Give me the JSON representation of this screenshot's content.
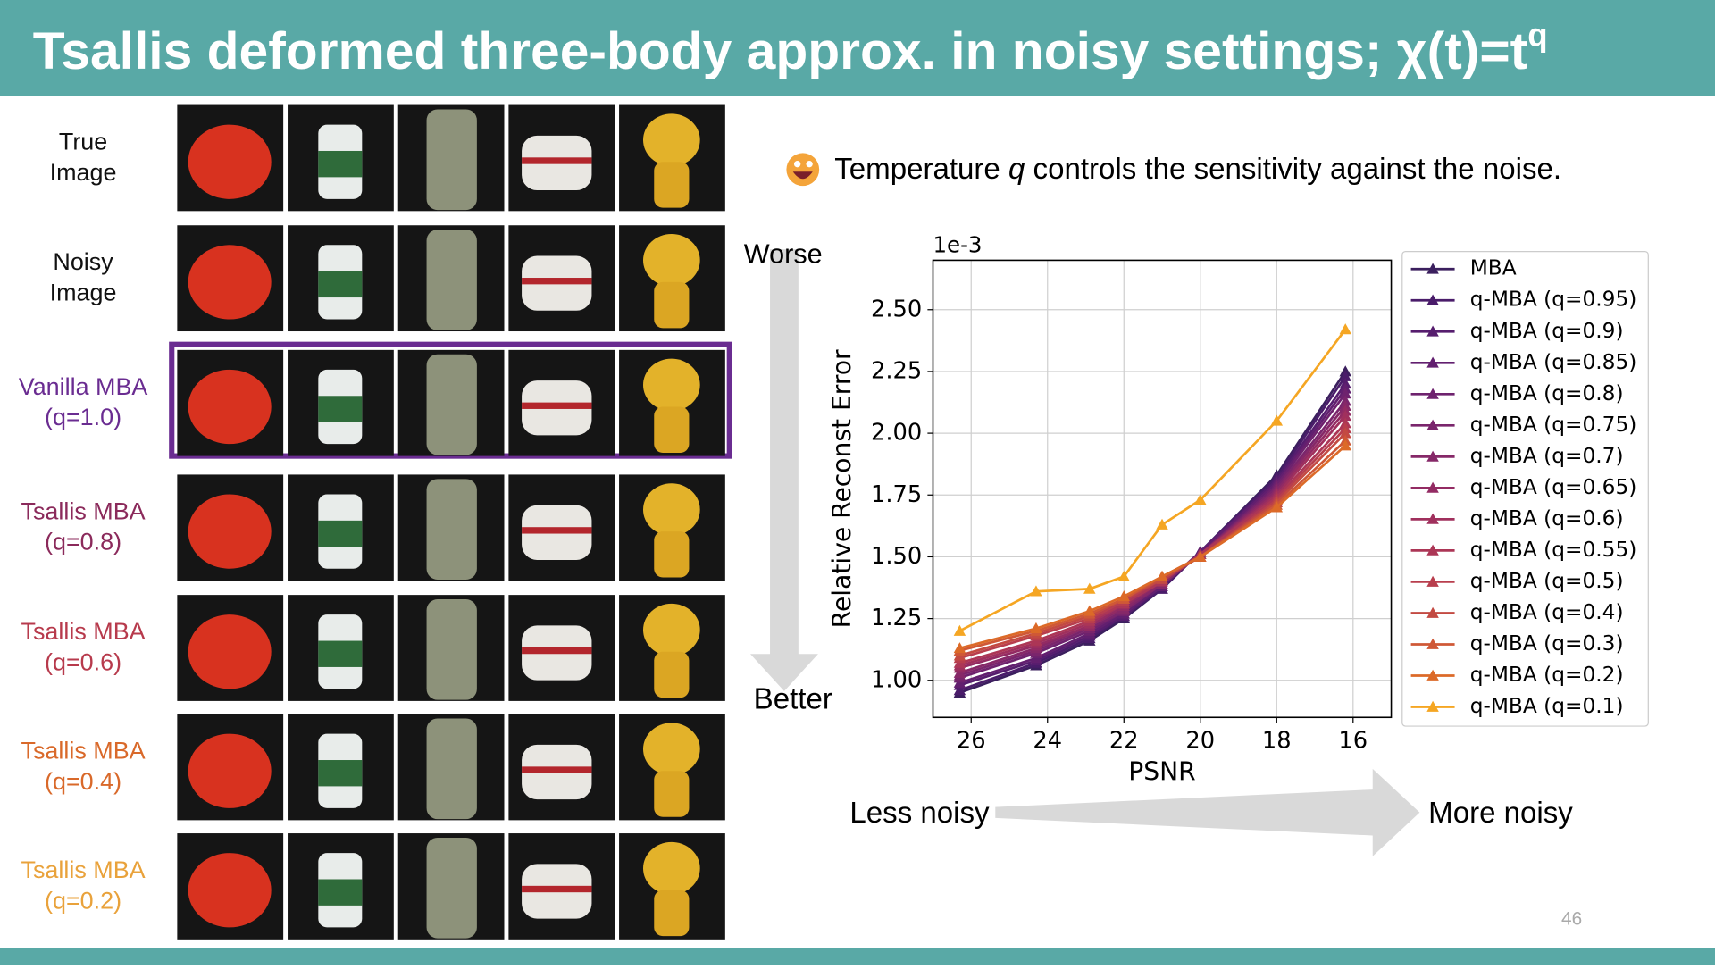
{
  "header": {
    "title": [
      "Tsallis deformed three-body approx. in noisy settings; χ(t)=t",
      "q"
    ]
  },
  "rows": [
    {
      "label": [
        "True",
        "Image"
      ],
      "color": "#111111"
    },
    {
      "label": [
        "Noisy",
        "Image"
      ],
      "color": "#111111"
    },
    {
      "label": [
        "Vanilla MBA",
        "(q=1.0)"
      ],
      "color": "#6a2c91"
    },
    {
      "label": [
        "Tsallis MBA",
        "(q=0.8)"
      ],
      "color": "#8b2a5b"
    },
    {
      "label": [
        "Tsallis MBA",
        "(q=0.6)"
      ],
      "color": "#b73a4c"
    },
    {
      "label": [
        "Tsallis MBA",
        "(q=0.4)"
      ],
      "color": "#d9692a"
    },
    {
      "label": [
        "Tsallis MBA",
        "(q=0.2)"
      ],
      "color": "#e9a23b"
    }
  ],
  "note": [
    "Temperature ",
    "q",
    " controls the sensitivity against the noise."
  ],
  "arrows": {
    "vertical": [
      "Worse",
      "Better"
    ],
    "horizontal": [
      "Less noisy",
      "More noisy"
    ]
  },
  "page_number": "46",
  "chart_data": {
    "type": "line",
    "xlabel": "PSNR",
    "ylabel": "Relative Reconst Error",
    "offset_label": "1e-3",
    "x": [
      26.3,
      24.3,
      22.9,
      22.0,
      21.0,
      20.0,
      18.0,
      16.2
    ],
    "xlim": [
      27,
      15
    ],
    "xticks": [
      26,
      24,
      22,
      20,
      18,
      16
    ],
    "ylim": [
      0.85,
      2.7
    ],
    "yticks": [
      {
        "value": 1,
        "label": "1.00"
      },
      {
        "value": 1.25,
        "label": "1.25"
      },
      {
        "value": 1.5,
        "label": "1.50"
      },
      {
        "value": 1.75,
        "label": "1.75"
      },
      {
        "value": 2,
        "label": "2.00"
      },
      {
        "value": 2.25,
        "label": "2.25"
      },
      {
        "value": 2.5,
        "label": "2.50"
      }
    ],
    "grid": true,
    "legend": "right",
    "series": [
      {
        "name": "MBA",
        "color": "#3b1f5e",
        "values": [
          0.95,
          1.06,
          1.16,
          1.25,
          1.37,
          1.52,
          1.83,
          2.25
        ]
      },
      {
        "name": "q-MBA (q=0.95)",
        "color": "#4a1c6a",
        "values": [
          0.96,
          1.07,
          1.17,
          1.26,
          1.37,
          1.52,
          1.82,
          2.23
        ]
      },
      {
        "name": "q-MBA (q=0.9)",
        "color": "#561d6e",
        "values": [
          0.98,
          1.08,
          1.18,
          1.26,
          1.38,
          1.52,
          1.81,
          2.2
        ]
      },
      {
        "name": "q-MBA (q=0.85)",
        "color": "#621f6f",
        "values": [
          0.99,
          1.09,
          1.19,
          1.27,
          1.38,
          1.52,
          1.8,
          2.18
        ]
      },
      {
        "name": "q-MBA (q=0.8)",
        "color": "#6e226e",
        "values": [
          1.01,
          1.11,
          1.2,
          1.28,
          1.39,
          1.51,
          1.79,
          2.16
        ]
      },
      {
        "name": "q-MBA (q=0.75)",
        "color": "#7a256c",
        "values": [
          1.02,
          1.12,
          1.21,
          1.28,
          1.39,
          1.51,
          1.78,
          2.13
        ]
      },
      {
        "name": "q-MBA (q=0.7)",
        "color": "#862868",
        "values": [
          1.03,
          1.13,
          1.22,
          1.29,
          1.39,
          1.51,
          1.77,
          2.11
        ]
      },
      {
        "name": "q-MBA (q=0.65)",
        "color": "#932b63",
        "values": [
          1.05,
          1.14,
          1.22,
          1.3,
          1.4,
          1.51,
          1.76,
          2.09
        ]
      },
      {
        "name": "q-MBA (q=0.6)",
        "color": "#a0305d",
        "values": [
          1.06,
          1.15,
          1.23,
          1.31,
          1.4,
          1.51,
          1.75,
          2.07
        ]
      },
      {
        "name": "q-MBA (q=0.55)",
        "color": "#ac3656",
        "values": [
          1.07,
          1.16,
          1.24,
          1.31,
          1.4,
          1.51,
          1.74,
          2.04
        ]
      },
      {
        "name": "q-MBA (q=0.5)",
        "color": "#b83e4d",
        "values": [
          1.09,
          1.18,
          1.25,
          1.32,
          1.41,
          1.5,
          1.73,
          2.02
        ]
      },
      {
        "name": "q-MBA (q=0.4)",
        "color": "#c34a42",
        "values": [
          1.1,
          1.19,
          1.26,
          1.33,
          1.41,
          1.5,
          1.72,
          2.0
        ]
      },
      {
        "name": "q-MBA (q=0.3)",
        "color": "#cf5836",
        "values": [
          1.12,
          1.2,
          1.27,
          1.33,
          1.42,
          1.5,
          1.71,
          1.97
        ]
      },
      {
        "name": "q-MBA (q=0.2)",
        "color": "#dc6a28",
        "values": [
          1.13,
          1.21,
          1.28,
          1.34,
          1.42,
          1.5,
          1.7,
          1.95
        ]
      },
      {
        "name": "q-MBA (q=0.1)",
        "color": "#f5a623",
        "values": [
          1.2,
          1.36,
          1.37,
          1.42,
          1.63,
          1.73,
          2.05,
          2.42
        ]
      }
    ]
  }
}
